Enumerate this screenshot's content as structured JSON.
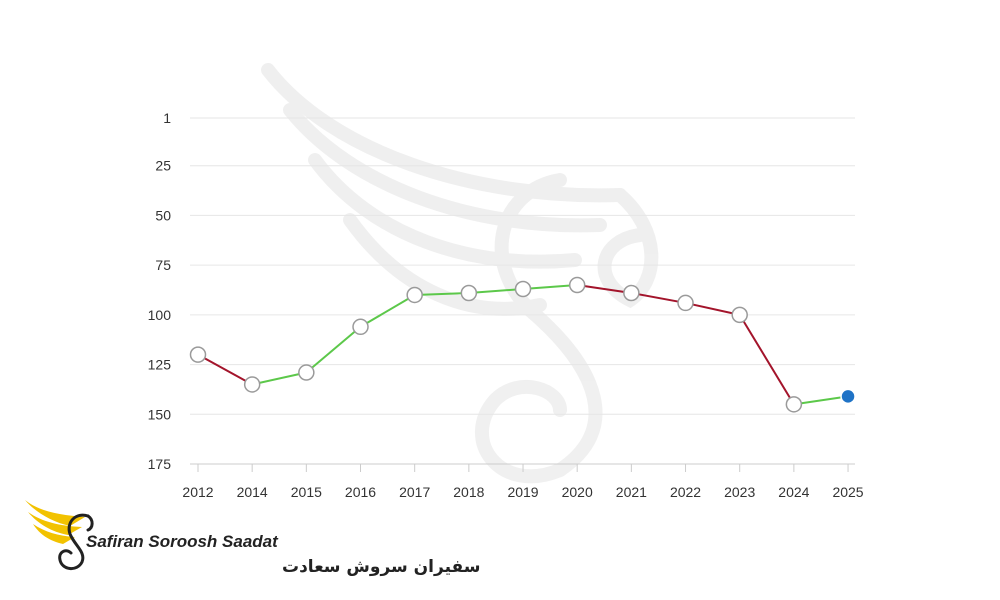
{
  "chart_data": {
    "type": "line",
    "title": "",
    "xlabel": "",
    "ylabel": "",
    "y_inverted": true,
    "ylim": [
      1,
      175
    ],
    "yticks": [
      1,
      25,
      50,
      75,
      100,
      125,
      150,
      175
    ],
    "categories": [
      "2012",
      "2014",
      "2015",
      "2016",
      "2017",
      "2018",
      "2019",
      "2020",
      "2021",
      "2022",
      "2023",
      "2024",
      "2025"
    ],
    "values": [
      120,
      135,
      129,
      106,
      90,
      89,
      87,
      85,
      89,
      94,
      100,
      145,
      141
    ],
    "grid": true,
    "colors": {
      "up": "#5cc84a",
      "down": "#a3142b",
      "marker_fill": "#ffffff",
      "marker_stroke": "#9a9a9a",
      "last_marker": "#1f73c6",
      "grid": "#e6e6e6",
      "watermark": "#efefef"
    }
  },
  "logo": {
    "text_en": "Safiran Soroosh Saadat",
    "text_fa": "سفیران سروش سعادت",
    "colors": {
      "wing": "#f2c200",
      "dark": "#222222"
    }
  }
}
